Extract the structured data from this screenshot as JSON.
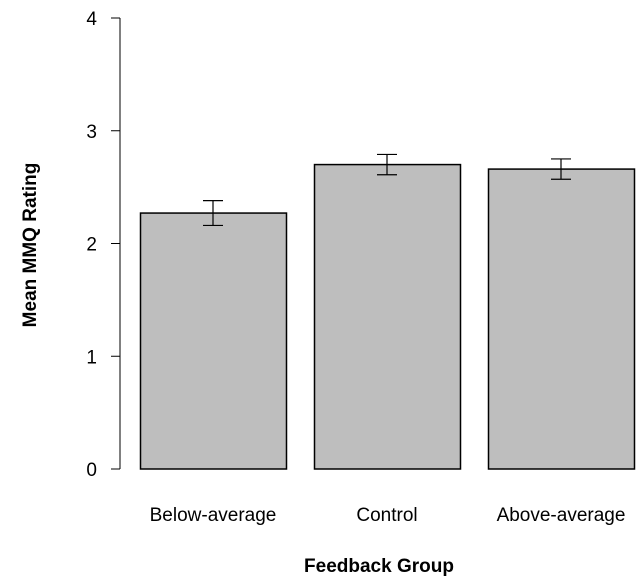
{
  "chart_data": {
    "type": "bar",
    "title": "",
    "xlabel": "Feedback Group",
    "ylabel": "Mean MMQ Rating",
    "categories": [
      "Below-average",
      "Control",
      "Above-average"
    ],
    "values": [
      2.27,
      2.7,
      2.66
    ],
    "error_bars": {
      "lower": [
        2.16,
        2.61,
        2.57
      ],
      "upper": [
        2.38,
        2.79,
        2.75
      ]
    },
    "ylim": [
      0,
      4
    ],
    "yticks": [
      "0",
      "1",
      "2",
      "3",
      "4"
    ],
    "grid": false,
    "legend": "none",
    "colors": {
      "bar_fill": "#bebebe",
      "bar_stroke": "#000000",
      "axis": "#000000",
      "error_bar": "#000000"
    }
  }
}
